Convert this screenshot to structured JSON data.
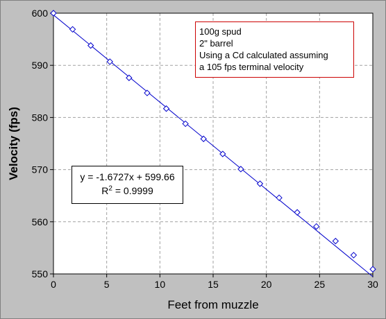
{
  "chart_data": {
    "type": "scatter",
    "xlabel": "Feet from muzzle",
    "ylabel": "Velocity (fps)",
    "xlim": [
      0,
      30
    ],
    "ylim": [
      550,
      600
    ],
    "x_ticks": [
      "0",
      "5",
      "10",
      "15",
      "20",
      "25",
      "30"
    ],
    "y_ticks": [
      "550",
      "560",
      "570",
      "580",
      "590",
      "600"
    ],
    "grid": true,
    "series": [
      {
        "marker": "diamond",
        "color": "#0000cc",
        "points": [
          {
            "x": 0.0,
            "y": 600.0
          },
          {
            "x": 1.8,
            "y": 596.9
          },
          {
            "x": 3.5,
            "y": 593.8
          },
          {
            "x": 5.3,
            "y": 590.7
          },
          {
            "x": 7.1,
            "y": 587.6
          },
          {
            "x": 8.8,
            "y": 584.7
          },
          {
            "x": 10.6,
            "y": 581.7
          },
          {
            "x": 12.4,
            "y": 578.8
          },
          {
            "x": 14.1,
            "y": 575.9
          },
          {
            "x": 15.9,
            "y": 573.0
          },
          {
            "x": 17.6,
            "y": 570.1
          },
          {
            "x": 19.4,
            "y": 567.3
          },
          {
            "x": 21.2,
            "y": 564.6
          },
          {
            "x": 22.9,
            "y": 561.8
          },
          {
            "x": 24.7,
            "y": 559.1
          },
          {
            "x": 26.5,
            "y": 556.3
          },
          {
            "x": 28.2,
            "y": 553.6
          },
          {
            "x": 30.0,
            "y": 550.9
          }
        ]
      }
    ],
    "trendline": {
      "type": "linear",
      "slope": -1.6727,
      "intercept": 599.66,
      "color": "#0000cc"
    },
    "annotations": {
      "note_lines": [
        "100g spud",
        "2\" barrel",
        "Using a Cd calculated assuming",
        "a 105 fps terminal velocity"
      ],
      "equation": "y = -1.6727x + 599.66",
      "r2_prefix": "R",
      "r2_sup": "2",
      "r2_value": " = 0.9999"
    }
  }
}
